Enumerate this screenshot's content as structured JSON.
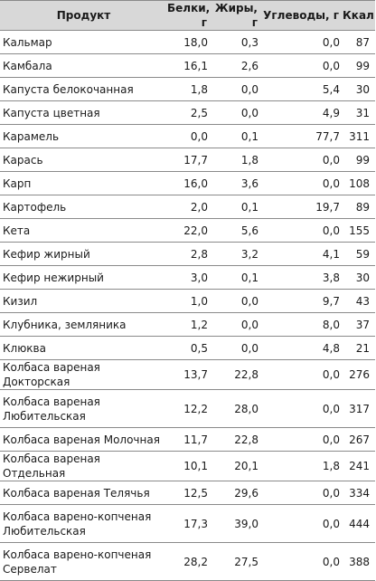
{
  "table": {
    "headers": {
      "product": "Продукт",
      "protein": "Белки, г",
      "fat": "Жиры, г",
      "carbs": "Углеводы, г",
      "kcal": "Ккал"
    },
    "rows": [
      {
        "name": "Кальмар",
        "protein": "18,0",
        "fat": "0,3",
        "carbs": "0,0",
        "kcal": "87"
      },
      {
        "name": "Камбала",
        "protein": "16,1",
        "fat": "2,6",
        "carbs": "0,0",
        "kcal": "99"
      },
      {
        "name": "Капуста белокочанная",
        "protein": "1,8",
        "fat": "0,0",
        "carbs": "5,4",
        "kcal": "30"
      },
      {
        "name": "Капуста цветная",
        "protein": "2,5",
        "fat": "0,0",
        "carbs": "4,9",
        "kcal": "31"
      },
      {
        "name": "Карамель",
        "protein": "0,0",
        "fat": "0,1",
        "carbs": "77,7",
        "kcal": "311"
      },
      {
        "name": "Карась",
        "protein": "17,7",
        "fat": "1,8",
        "carbs": "0,0",
        "kcal": "99"
      },
      {
        "name": "Карп",
        "protein": "16,0",
        "fat": "3,6",
        "carbs": "0,0",
        "kcal": "108"
      },
      {
        "name": "Картофель",
        "protein": "2,0",
        "fat": "0,1",
        "carbs": "19,7",
        "kcal": "89"
      },
      {
        "name": "Кета",
        "protein": "22,0",
        "fat": "5,6",
        "carbs": "0,0",
        "kcal": "155"
      },
      {
        "name": "Кефир жирный",
        "protein": "2,8",
        "fat": "3,2",
        "carbs": "4,1",
        "kcal": "59"
      },
      {
        "name": "Кефир нежирный",
        "protein": "3,0",
        "fat": "0,1",
        "carbs": "3,8",
        "kcal": "30"
      },
      {
        "name": "Кизил",
        "protein": "1,0",
        "fat": "0,0",
        "carbs": "9,7",
        "kcal": "43"
      },
      {
        "name": "Клубника, земляника",
        "protein": "1,2",
        "fat": "0,0",
        "carbs": "8,0",
        "kcal": "37"
      },
      {
        "name": "Клюква",
        "protein": "0,5",
        "fat": "0,0",
        "carbs": "4,8",
        "kcal": "21"
      },
      {
        "name": "Колбаса вареная Докторская",
        "protein": "13,7",
        "fat": "22,8",
        "carbs": "0,0",
        "kcal": "276"
      },
      {
        "name": "Колбаса вареная Любительская",
        "protein": "12,2",
        "fat": "28,0",
        "carbs": "0,0",
        "kcal": "317"
      },
      {
        "name": "Колбаса вареная Молочная",
        "protein": "11,7",
        "fat": "22,8",
        "carbs": "0,0",
        "kcal": "267"
      },
      {
        "name": "Колбаса вареная Отдельная",
        "protein": "10,1",
        "fat": "20,1",
        "carbs": "1,8",
        "kcal": "241"
      },
      {
        "name": "Колбаса вареная Телячья",
        "protein": "12,5",
        "fat": "29,6",
        "carbs": "0,0",
        "kcal": "334"
      },
      {
        "name": "Колбаса варено-копченая Любительская",
        "protein": "17,3",
        "fat": "39,0",
        "carbs": "0,0",
        "kcal": "444"
      },
      {
        "name": "Колбаса варено-копченая Сервелат",
        "protein": "28,2",
        "fat": "27,5",
        "carbs": "0,0",
        "kcal": "388"
      }
    ]
  }
}
